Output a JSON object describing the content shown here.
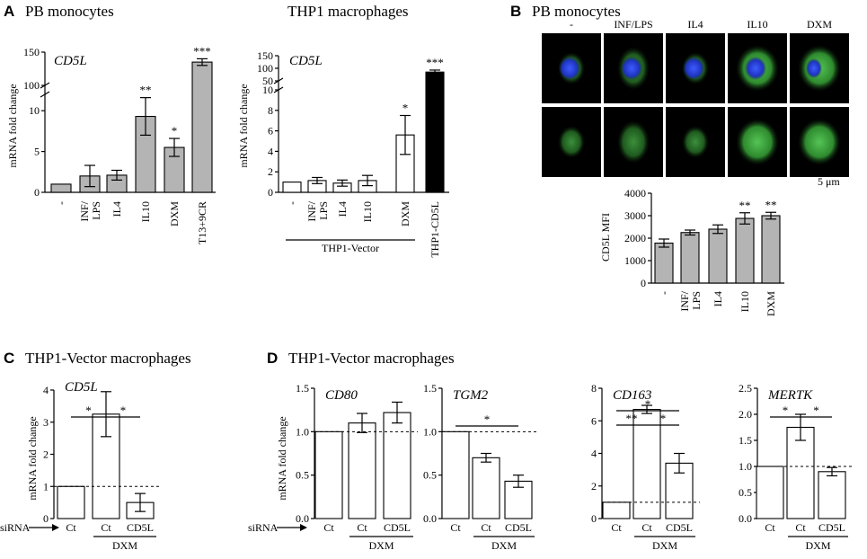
{
  "panels": {
    "A": {
      "label": "A",
      "title": "PB monocytes"
    },
    "A2": {
      "title": "THP1 macrophages"
    },
    "B": {
      "label": "B",
      "title": "PB monocytes"
    },
    "C": {
      "label": "C",
      "title": "THP1-Vector macrophages"
    },
    "D": {
      "label": "D",
      "title": "THP1-Vector macrophages"
    }
  },
  "micro": {
    "columns": [
      "-",
      "INF/LPS",
      "IL4",
      "IL10",
      "DXM"
    ],
    "scale_label": "5 μm"
  },
  "siRNA_label": "siRNA",
  "group_labels": {
    "thp1_vector": "THP1-Vector",
    "dxm": "DXM"
  },
  "colors": {
    "gray": "#b4b4b4",
    "white": "#ffffff",
    "black": "#000000",
    "nucleus": "#2440d8",
    "cd5l_green": "#3fa43f"
  },
  "chart_data": [
    {
      "id": "A1",
      "type": "bar",
      "gene": "CD5L",
      "ylabel": "mRNA fold change",
      "categories": [
        "-",
        "INF/LPS",
        "IL4",
        "IL10",
        "DXM",
        "T13+9CR"
      ],
      "values": [
        1,
        2.0,
        2.1,
        9.3,
        5.5,
        135
      ],
      "errors": [
        0,
        1.3,
        0.6,
        2.3,
        1.1,
        5
      ],
      "stars": [
        "",
        "",
        "",
        "**",
        "*",
        "***"
      ],
      "fills": [
        "gray",
        "gray",
        "gray",
        "gray",
        "gray",
        "gray"
      ],
      "ylim": [
        0,
        150
      ],
      "broken_axis": {
        "low": [
          0,
          12
        ],
        "high": [
          100,
          150
        ]
      },
      "yticks_low": [
        "0",
        "5",
        "10"
      ],
      "yticks_high": [
        "100",
        "150"
      ]
    },
    {
      "id": "A2",
      "type": "bar",
      "gene": "CD5L",
      "ylabel": "mRNA fold change",
      "categories": [
        "-",
        "INF/LPS",
        "IL4",
        "IL10",
        "DXM",
        "THP1-CD5L"
      ],
      "values": [
        1,
        1.15,
        0.9,
        1.15,
        5.6,
        85
      ],
      "errors": [
        0,
        0.3,
        0.3,
        0.5,
        1.9,
        8
      ],
      "stars": [
        "",
        "",
        "",
        "",
        "*",
        "***"
      ],
      "fills": [
        "white",
        "white",
        "white",
        "white",
        "white",
        "black"
      ],
      "ylim": [
        0,
        150
      ],
      "broken_axis": {
        "low": [
          0,
          10
        ],
        "high": [
          50,
          150
        ]
      },
      "yticks_low": [
        "0",
        "2",
        "4",
        "6",
        "8",
        "10"
      ],
      "yticks_high": [
        "50",
        "100",
        "150"
      ]
    },
    {
      "id": "B",
      "type": "bar",
      "ylabel": "CD5L MFI",
      "categories": [
        "-",
        "INF/LPS",
        "IL4",
        "IL10",
        "DXM"
      ],
      "values": [
        1780,
        2250,
        2400,
        2880,
        3000
      ],
      "errors": [
        180,
        110,
        190,
        250,
        150
      ],
      "stars": [
        "",
        "",
        "",
        "**",
        "**"
      ],
      "fills": [
        "gray",
        "gray",
        "gray",
        "gray",
        "gray"
      ],
      "ylim": [
        0,
        4000
      ],
      "yticks": [
        "0",
        "1000",
        "2000",
        "3000",
        "4000"
      ]
    },
    {
      "id": "C",
      "type": "bar",
      "gene": "CD5L",
      "ylabel": "mRNA fold change",
      "categories": [
        "Ct",
        "Ct",
        "CD5L"
      ],
      "values": [
        1,
        3.25,
        0.5
      ],
      "errors": [
        0,
        0.7,
        0.28
      ],
      "fills": [
        "white",
        "white",
        "white"
      ],
      "ylim": [
        0,
        4
      ],
      "yticks": [
        "0",
        "1",
        "2",
        "3",
        "4"
      ],
      "sig": [
        {
          "from": 0,
          "to": 1,
          "label": "*"
        },
        {
          "from": 1,
          "to": 2,
          "label": "*"
        }
      ]
    },
    {
      "id": "D1",
      "type": "bar",
      "gene": "CD80",
      "ylabel": "mRNA fold change",
      "categories": [
        "Ct",
        "Ct",
        "CD5L"
      ],
      "values": [
        1,
        1.1,
        1.22
      ],
      "errors": [
        0,
        0.11,
        0.12
      ],
      "fills": [
        "white",
        "white",
        "white"
      ],
      "ylim": [
        0,
        1.5
      ],
      "yticks": [
        "0.0",
        "0.5",
        "1.0",
        "1.5"
      ],
      "sig": []
    },
    {
      "id": "D2",
      "type": "bar",
      "gene": "TGM2",
      "categories": [
        "Ct",
        "Ct",
        "CD5L"
      ],
      "values": [
        1,
        0.7,
        0.43
      ],
      "errors": [
        0,
        0.05,
        0.07
      ],
      "fills": [
        "white",
        "white",
        "white"
      ],
      "ylim": [
        0,
        1.5
      ],
      "yticks": [
        "0.0",
        "0.5",
        "1.0",
        "1.5"
      ],
      "sig": [
        {
          "from": 0,
          "to": 2,
          "label": "*"
        }
      ]
    },
    {
      "id": "D3",
      "type": "bar",
      "gene": "CD163",
      "categories": [
        "Ct",
        "Ct",
        "CD5L"
      ],
      "values": [
        1,
        6.7,
        3.4
      ],
      "errors": [
        0,
        0.25,
        0.6
      ],
      "fills": [
        "white",
        "white",
        "white"
      ],
      "ylim": [
        0,
        8
      ],
      "yticks": [
        "0",
        "2",
        "4",
        "6",
        "8"
      ],
      "sig": [
        {
          "from": 0,
          "to": 2,
          "label": "*"
        },
        {
          "from": 0,
          "to": 1,
          "label": "**"
        },
        {
          "from": 1,
          "to": 2,
          "label": "*"
        }
      ]
    },
    {
      "id": "D4",
      "type": "bar",
      "gene": "MERTK",
      "categories": [
        "Ct",
        "Ct",
        "CD5L"
      ],
      "values": [
        1,
        1.75,
        0.9
      ],
      "errors": [
        0,
        0.25,
        0.08
      ],
      "fills": [
        "white",
        "white",
        "white"
      ],
      "ylim": [
        0,
        2.5
      ],
      "yticks": [
        "0.0",
        "0.5",
        "1.0",
        "1.5",
        "2.0",
        "2.5"
      ],
      "sig": [
        {
          "from": 0,
          "to": 1,
          "label": "*"
        },
        {
          "from": 1,
          "to": 2,
          "label": "*"
        }
      ]
    }
  ]
}
